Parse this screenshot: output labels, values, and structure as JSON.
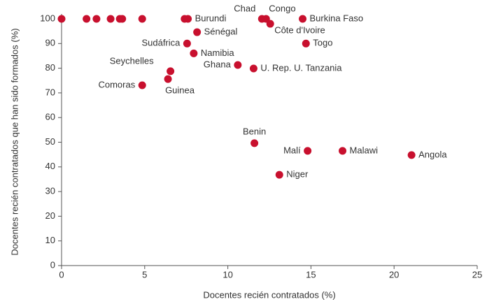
{
  "chart_data": {
    "type": "scatter",
    "x_label": "Docentes recién contratados (%)",
    "y_label": "Docentes recién contratados que han sido formados (%)",
    "color": "#c8102e",
    "x": [
      0,
      1.5,
      2.1,
      2.95,
      3.5,
      3.65,
      4.85,
      7.4,
      7.6,
      12.05,
      12.3,
      14.5,
      12.55,
      8.15,
      14.7,
      7.55,
      7.95,
      10.6,
      11.55,
      6.55,
      6.4,
      4.85,
      11.6,
      14.8,
      16.9,
      21.05,
      13.1
    ],
    "y": [
      100,
      100,
      100,
      100,
      100,
      100,
      100,
      100,
      100,
      100,
      100,
      100,
      98,
      94.6,
      90,
      90,
      86,
      81.3,
      79.9,
      78.8,
      75.6,
      73.1,
      49.6,
      46.5,
      46.5,
      44.8,
      36.8
    ],
    "labels": [
      null,
      null,
      null,
      null,
      null,
      null,
      null,
      null,
      "Burundi",
      "Chad",
      "Congo",
      "Burkina Faso",
      "Côte d'Ivoire",
      "Sénégal",
      "Togo",
      "Sudáfrica",
      "Namibia",
      "Ghana",
      "U. Rep. U. Tanzania",
      "Seychelles",
      "Guinea",
      "Comoras",
      "Benin",
      "Malí",
      "Malawi",
      "Angola",
      "Niger"
    ],
    "xlim": [
      0,
      25
    ],
    "xticks": [
      0,
      5,
      10,
      15,
      20,
      25
    ],
    "ylim": [
      0,
      100
    ],
    "yticks": [
      0,
      10,
      20,
      30,
      40,
      50,
      60,
      70,
      80,
      90,
      100
    ]
  }
}
